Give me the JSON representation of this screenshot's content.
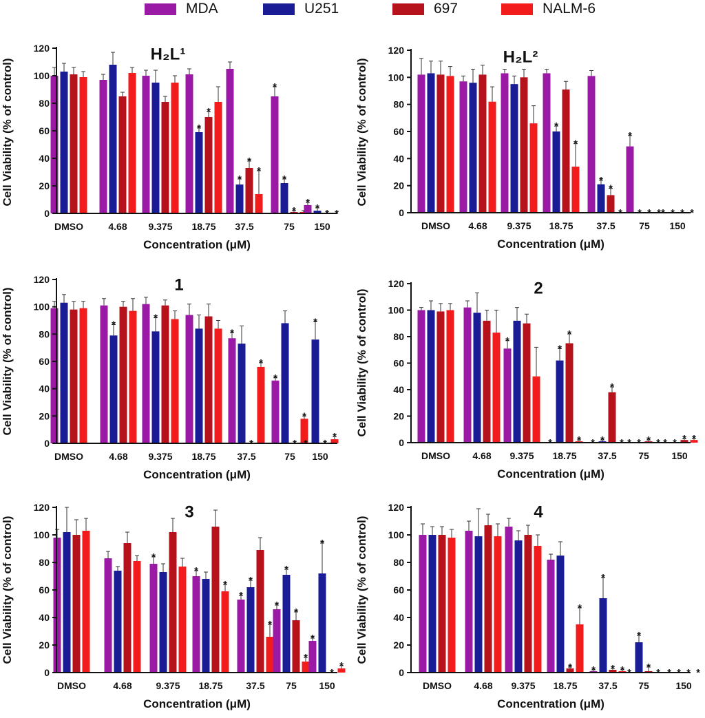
{
  "legend": [
    {
      "label": "MDA",
      "color": "#9a1aa6"
    },
    {
      "label": "U251",
      "color": "#1a1c96"
    },
    {
      "label": "697",
      "color": "#b5121b"
    },
    {
      "label": "NALM-6",
      "color": "#f21c1c"
    }
  ],
  "chart_data": [
    {
      "type": "bar",
      "title": "H₂L¹",
      "xlabel": "Concentration (μM)",
      "ylabel": "Cell Viability (% of control)",
      "ylim": [
        0,
        120
      ],
      "yticks": [
        0,
        20,
        40,
        60,
        80,
        100,
        120
      ],
      "categories": [
        "DMSO",
        "4.68",
        "9.375",
        "18.75",
        "37.5",
        "75",
        "150"
      ],
      "series": [
        {
          "name": "MDA",
          "values": [
            100,
            97,
            100,
            101,
            105,
            85,
            6
          ],
          "errors": [
            6,
            4,
            4,
            4,
            5,
            7,
            2
          ],
          "sig": [
            false,
            false,
            false,
            false,
            false,
            true,
            true
          ]
        },
        {
          "name": "U251",
          "values": [
            103,
            108,
            95,
            59,
            21,
            22,
            2
          ],
          "errors": [
            6,
            9,
            9,
            3,
            4,
            3,
            2
          ],
          "sig": [
            false,
            false,
            false,
            true,
            true,
            true,
            true
          ]
        },
        {
          "name": "697",
          "values": [
            101,
            85,
            81,
            70,
            33,
            1,
            0
          ],
          "errors": [
            5,
            3,
            4,
            4,
            5,
            1,
            0
          ],
          "sig": [
            false,
            false,
            false,
            true,
            true,
            true,
            true
          ]
        },
        {
          "name": "NALM-6",
          "values": [
            99,
            102,
            95,
            81,
            14,
            1,
            0
          ],
          "errors": [
            4,
            4,
            5,
            11,
            17,
            1,
            0
          ],
          "sig": [
            false,
            false,
            false,
            false,
            true,
            false,
            true
          ]
        }
      ]
    },
    {
      "type": "bar",
      "title": "H₂L²",
      "xlabel": "Concentration (μM)",
      "ylabel": "Cell Viability (% of control)",
      "ylim": [
        0,
        120
      ],
      "yticks": [
        0,
        20,
        40,
        60,
        80,
        100,
        120
      ],
      "categories": [
        "DMSO",
        "4.68",
        "9.375",
        "18.75",
        "37.5",
        "75",
        "150"
      ],
      "series": [
        {
          "name": "MDA",
          "values": [
            102,
            97,
            103,
            103,
            101,
            49,
            0
          ],
          "errors": [
            12,
            4,
            3,
            3,
            4,
            8,
            0
          ],
          "sig": [
            false,
            false,
            false,
            false,
            false,
            true,
            true
          ]
        },
        {
          "name": "U251",
          "values": [
            103,
            96,
            95,
            60,
            21,
            0,
            0
          ],
          "errors": [
            9,
            10,
            6,
            4,
            3,
            0,
            0
          ],
          "sig": [
            false,
            false,
            false,
            true,
            true,
            true,
            true
          ]
        },
        {
          "name": "697",
          "values": [
            102,
            102,
            100,
            91,
            13,
            0,
            0
          ],
          "errors": [
            10,
            7,
            6,
            6,
            5,
            0,
            0
          ],
          "sig": [
            false,
            false,
            false,
            false,
            true,
            true,
            true
          ]
        },
        {
          "name": "NALM-6",
          "values": [
            101,
            82,
            66,
            34,
            0,
            0,
            0
          ],
          "errors": [
            7,
            11,
            13,
            17,
            0,
            0,
            0
          ],
          "sig": [
            false,
            false,
            false,
            true,
            true,
            true,
            true
          ]
        }
      ]
    },
    {
      "type": "bar",
      "title": "1",
      "xlabel": "Concentration (μM)",
      "ylabel": "Cell Viability (% of control)",
      "ylim": [
        0,
        120
      ],
      "yticks": [
        0,
        20,
        40,
        60,
        80,
        100,
        120
      ],
      "categories": [
        "DMSO",
        "4.68",
        "9.375",
        "18.75",
        "37.5",
        "75",
        "150"
      ],
      "series": [
        {
          "name": "MDA",
          "values": [
            99,
            101,
            102,
            94,
            77,
            46,
            0
          ],
          "errors": [
            5,
            5,
            5,
            8,
            4,
            2,
            0
          ],
          "sig": [
            false,
            false,
            false,
            false,
            true,
            true,
            true
          ]
        },
        {
          "name": "U251",
          "values": [
            103,
            79,
            82,
            84,
            73,
            88,
            76
          ],
          "errors": [
            6,
            8,
            10,
            10,
            13,
            9,
            13
          ],
          "sig": [
            false,
            true,
            true,
            false,
            false,
            false,
            true
          ]
        },
        {
          "name": "697",
          "values": [
            98,
            100,
            101,
            93,
            0,
            0,
            0
          ],
          "errors": [
            6,
            4,
            4,
            9,
            0,
            0,
            0
          ],
          "sig": [
            false,
            false,
            false,
            false,
            true,
            true,
            true
          ]
        },
        {
          "name": "NALM-6",
          "values": [
            99,
            97,
            91,
            84,
            56,
            18,
            3
          ],
          "errors": [
            5,
            9,
            6,
            6,
            3,
            2,
            2
          ],
          "sig": [
            false,
            false,
            false,
            false,
            true,
            true,
            true
          ]
        }
      ]
    },
    {
      "type": "bar",
      "title": "2",
      "xlabel": "Concentration (μM)",
      "ylabel": "Cell Viability (% of control)",
      "ylim": [
        0,
        120
      ],
      "yticks": [
        0,
        20,
        40,
        60,
        80,
        100,
        120
      ],
      "categories": [
        "DMSO",
        "4.68",
        "9.375",
        "18.75",
        "37.5",
        "75",
        "150"
      ],
      "series": [
        {
          "name": "MDA",
          "values": [
            100,
            102,
            71,
            0,
            0,
            0,
            0
          ],
          "errors": [
            2,
            5,
            6,
            0,
            0,
            0,
            0
          ],
          "sig": [
            false,
            false,
            true,
            true,
            true,
            true,
            true
          ]
        },
        {
          "name": "U251",
          "values": [
            100,
            98,
            92,
            62,
            1,
            0,
            0
          ],
          "errors": [
            7,
            15,
            10,
            9,
            1,
            0,
            0
          ],
          "sig": [
            false,
            false,
            false,
            true,
            true,
            true,
            true
          ]
        },
        {
          "name": "697",
          "values": [
            99,
            92,
            90,
            75,
            38,
            1,
            2
          ],
          "errors": [
            6,
            8,
            7,
            7,
            4,
            1,
            1
          ],
          "sig": [
            false,
            false,
            false,
            true,
            true,
            true,
            true
          ]
        },
        {
          "name": "NALM-6",
          "values": [
            100,
            83,
            50,
            1,
            0,
            0,
            2
          ],
          "errors": [
            5,
            17,
            22,
            1,
            0,
            0,
            1
          ],
          "sig": [
            false,
            false,
            false,
            true,
            true,
            true,
            true
          ]
        }
      ]
    },
    {
      "type": "bar",
      "title": "3",
      "xlabel": "Concentration (μM)",
      "ylabel": "Cell Viability (% of control)",
      "ylim": [
        0,
        120
      ],
      "yticks": [
        0,
        20,
        40,
        60,
        80,
        100,
        120
      ],
      "categories": [
        "DMSO",
        "4.68",
        "9.375",
        "18.75",
        "37.5",
        "75",
        "150"
      ],
      "series": [
        {
          "name": "MDA",
          "values": [
            98,
            83,
            79,
            70,
            53,
            46,
            23
          ],
          "errors": [
            6,
            5,
            5,
            4,
            3,
            3,
            2
          ],
          "sig": [
            false,
            false,
            true,
            true,
            true,
            true,
            true
          ]
        },
        {
          "name": "U251",
          "values": [
            102,
            74,
            73,
            68,
            62,
            71,
            72
          ],
          "errors": [
            18,
            3,
            6,
            5,
            5,
            4,
            22
          ],
          "sig": [
            false,
            false,
            false,
            false,
            true,
            true,
            true
          ]
        },
        {
          "name": "697",
          "values": [
            100,
            94,
            102,
            106,
            89,
            38,
            0
          ],
          "errors": [
            11,
            8,
            10,
            12,
            9,
            6,
            0
          ],
          "sig": [
            false,
            false,
            false,
            false,
            false,
            true,
            true
          ]
        },
        {
          "name": "NALM-6",
          "values": [
            103,
            81,
            77,
            59,
            26,
            8,
            3
          ],
          "errors": [
            9,
            4,
            6,
            5,
            9,
            3,
            2
          ],
          "sig": [
            false,
            false,
            false,
            true,
            true,
            true,
            true
          ]
        }
      ]
    },
    {
      "type": "bar",
      "title": "4",
      "xlabel": "Concentration (μM)",
      "ylabel": "Cell Viability (% of control)",
      "ylim": [
        0,
        120
      ],
      "yticks": [
        0,
        20,
        40,
        60,
        80,
        100,
        120
      ],
      "categories": [
        "DMSO",
        "4.68",
        "9.375",
        "18.75",
        "37.5",
        "75",
        "150"
      ],
      "series": [
        {
          "name": "MDA",
          "values": [
            100,
            103,
            106,
            82,
            1,
            0,
            0
          ],
          "errors": [
            8,
            7,
            6,
            4,
            1,
            0,
            0
          ],
          "sig": [
            false,
            false,
            false,
            false,
            true,
            true,
            true
          ]
        },
        {
          "name": "U251",
          "values": [
            100,
            99,
            96,
            85,
            54,
            22,
            0
          ],
          "errors": [
            6,
            20,
            7,
            10,
            15,
            5,
            0
          ],
          "sig": [
            false,
            false,
            false,
            false,
            true,
            true,
            true
          ]
        },
        {
          "name": "697",
          "values": [
            100,
            107,
            100,
            3,
            2,
            1,
            0
          ],
          "errors": [
            6,
            8,
            7,
            1,
            1,
            3,
            0
          ],
          "sig": [
            false,
            false,
            false,
            true,
            true,
            true,
            true
          ]
        },
        {
          "name": "NALM-6",
          "values": [
            98,
            99,
            92,
            35,
            1,
            0,
            0
          ],
          "errors": [
            6,
            9,
            8,
            12,
            1,
            0,
            0
          ],
          "sig": [
            false,
            false,
            false,
            true,
            true,
            true,
            true
          ]
        }
      ]
    }
  ]
}
